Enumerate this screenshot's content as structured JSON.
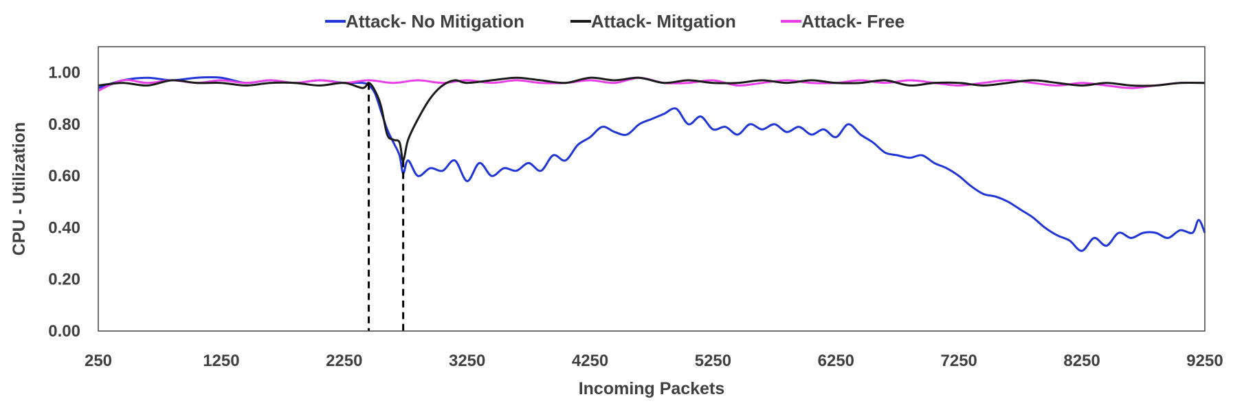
{
  "chart_data": {
    "type": "line",
    "title": "",
    "xlabel": "Incoming Packets",
    "ylabel": "CPU - Utilization",
    "xlim": [
      250,
      9250
    ],
    "ylim": [
      0,
      1.1
    ],
    "xticks": [
      "250",
      "1250",
      "2250",
      "3250",
      "4250",
      "5250",
      "6250",
      "7250",
      "8250",
      "9250"
    ],
    "yticks": [
      "0.00",
      "0.20",
      "0.40",
      "0.60",
      "0.80",
      "1.00"
    ],
    "legend_position": "top",
    "grid": false,
    "markers": [
      {
        "x": 2450,
        "y": 0.96
      },
      {
        "x": 2730,
        "y": 0.66
      }
    ],
    "series": [
      {
        "name": "Attack- No Mitigation",
        "color": "#1f35d8",
        "x": [
          250,
          450,
          650,
          850,
          1050,
          1250,
          1450,
          1650,
          1850,
          2050,
          2250,
          2400,
          2450,
          2500,
          2550,
          2600,
          2650,
          2700,
          2730,
          2770,
          2850,
          2950,
          3050,
          3150,
          3250,
          3350,
          3450,
          3550,
          3650,
          3750,
          3850,
          3950,
          4050,
          4150,
          4250,
          4350,
          4450,
          4550,
          4650,
          4750,
          4850,
          4950,
          5050,
          5150,
          5250,
          5350,
          5450,
          5550,
          5650,
          5750,
          5850,
          5950,
          6050,
          6150,
          6250,
          6350,
          6450,
          6550,
          6650,
          6750,
          6850,
          6950,
          7050,
          7150,
          7250,
          7350,
          7450,
          7550,
          7650,
          7750,
          7850,
          7950,
          8050,
          8150,
          8250,
          8350,
          8450,
          8550,
          8650,
          8750,
          8850,
          8950,
          9050,
          9150,
          9200,
          9250
        ],
        "y": [
          0.94,
          0.97,
          0.98,
          0.97,
          0.98,
          0.98,
          0.96,
          0.97,
          0.96,
          0.97,
          0.96,
          0.96,
          0.95,
          0.92,
          0.85,
          0.78,
          0.73,
          0.68,
          0.61,
          0.66,
          0.6,
          0.63,
          0.62,
          0.66,
          0.58,
          0.65,
          0.6,
          0.63,
          0.62,
          0.65,
          0.62,
          0.68,
          0.66,
          0.72,
          0.75,
          0.79,
          0.77,
          0.76,
          0.8,
          0.82,
          0.84,
          0.86,
          0.8,
          0.83,
          0.78,
          0.79,
          0.76,
          0.8,
          0.78,
          0.8,
          0.77,
          0.79,
          0.76,
          0.78,
          0.75,
          0.8,
          0.76,
          0.73,
          0.69,
          0.68,
          0.67,
          0.68,
          0.65,
          0.63,
          0.6,
          0.56,
          0.53,
          0.52,
          0.5,
          0.47,
          0.44,
          0.4,
          0.37,
          0.35,
          0.31,
          0.36,
          0.33,
          0.38,
          0.36,
          0.38,
          0.38,
          0.36,
          0.39,
          0.38,
          0.43,
          0.38
        ]
      },
      {
        "name": "Attack- Mitgation",
        "color": "#1a1a1a",
        "x": [
          250,
          450,
          650,
          850,
          1050,
          1250,
          1450,
          1650,
          1850,
          2050,
          2250,
          2400,
          2450,
          2500,
          2550,
          2600,
          2650,
          2700,
          2730,
          2770,
          2850,
          2950,
          3050,
          3150,
          3250,
          3450,
          3650,
          3850,
          4050,
          4250,
          4450,
          4650,
          4850,
          5050,
          5250,
          5450,
          5650,
          5850,
          6050,
          6250,
          6450,
          6650,
          6850,
          7050,
          7250,
          7450,
          7650,
          7850,
          8050,
          8250,
          8450,
          8650,
          8850,
          9050,
          9250
        ],
        "y": [
          0.95,
          0.96,
          0.95,
          0.97,
          0.96,
          0.96,
          0.95,
          0.96,
          0.96,
          0.95,
          0.96,
          0.94,
          0.96,
          0.93,
          0.87,
          0.76,
          0.74,
          0.73,
          0.66,
          0.74,
          0.82,
          0.9,
          0.95,
          0.97,
          0.96,
          0.97,
          0.98,
          0.97,
          0.96,
          0.98,
          0.97,
          0.98,
          0.96,
          0.97,
          0.96,
          0.96,
          0.97,
          0.96,
          0.97,
          0.96,
          0.96,
          0.97,
          0.95,
          0.96,
          0.96,
          0.95,
          0.96,
          0.97,
          0.96,
          0.95,
          0.96,
          0.95,
          0.95,
          0.96,
          0.96
        ]
      },
      {
        "name": "Attack- Free",
        "color": "#e83ee8",
        "x": [
          250,
          450,
          650,
          850,
          1050,
          1250,
          1450,
          1650,
          1850,
          2050,
          2250,
          2450,
          2650,
          2850,
          3050,
          3250,
          3450,
          3650,
          3850,
          4050,
          4250,
          4450,
          4650,
          4850,
          5050,
          5250,
          5450,
          5650,
          5850,
          6050,
          6250,
          6450,
          6650,
          6850,
          7050,
          7250,
          7450,
          7650,
          7850,
          8050,
          8250,
          8450,
          8650,
          8850,
          9050,
          9250
        ],
        "y": [
          0.93,
          0.97,
          0.96,
          0.97,
          0.96,
          0.97,
          0.96,
          0.97,
          0.96,
          0.97,
          0.96,
          0.97,
          0.96,
          0.97,
          0.96,
          0.97,
          0.96,
          0.97,
          0.96,
          0.96,
          0.97,
          0.96,
          0.98,
          0.96,
          0.96,
          0.97,
          0.95,
          0.96,
          0.97,
          0.96,
          0.96,
          0.97,
          0.96,
          0.97,
          0.96,
          0.95,
          0.96,
          0.97,
          0.96,
          0.95,
          0.96,
          0.95,
          0.94,
          0.95,
          0.96,
          0.96
        ]
      }
    ]
  }
}
